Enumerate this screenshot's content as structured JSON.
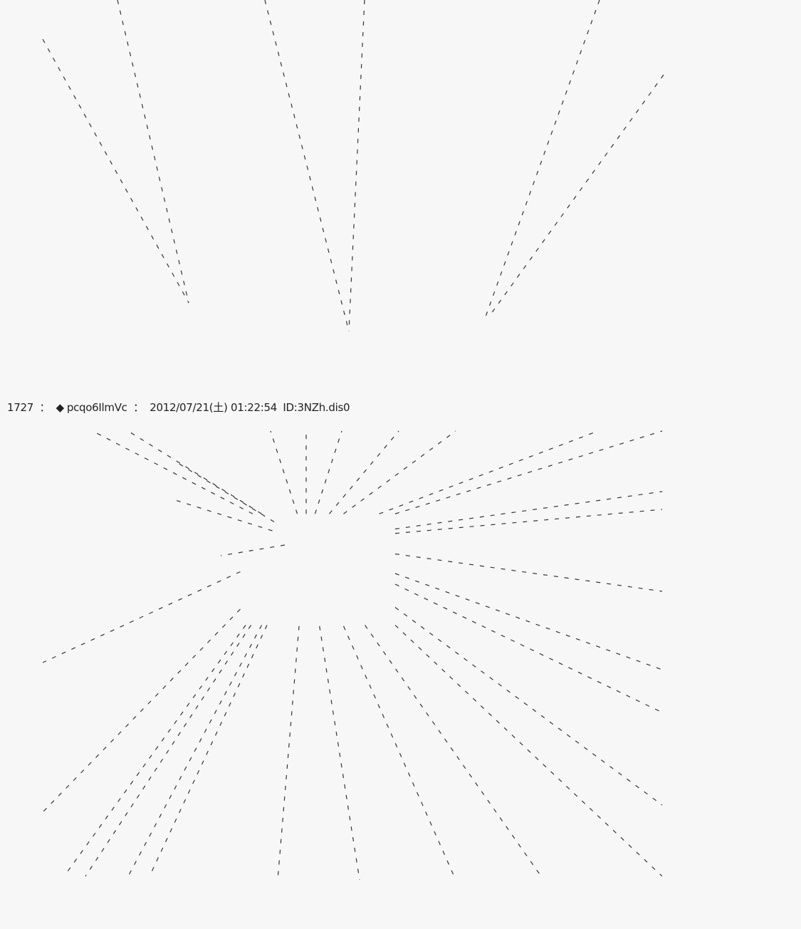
{
  "post": {
    "number": "1727",
    "separator": "：",
    "trip_marker": "◆",
    "trip": "pcqo6IlmVc",
    "datetime": "2012/07/21(土) 01:22:54",
    "id": "ID:3NZh.dis0"
  }
}
